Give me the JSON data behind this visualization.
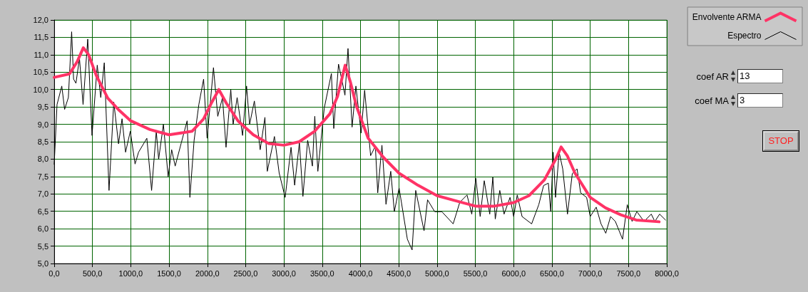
{
  "chart_data": {
    "type": "line",
    "xlim": [
      0,
      8000
    ],
    "ylim": [
      5,
      12
    ],
    "xticks": [
      {
        "value": 0,
        "label": "0,0"
      },
      {
        "value": 500,
        "label": "500,0"
      },
      {
        "value": 1000,
        "label": "1000,0"
      },
      {
        "value": 1500,
        "label": "1500,0"
      },
      {
        "value": 2000,
        "label": "2000,0"
      },
      {
        "value": 2500,
        "label": "2500,0"
      },
      {
        "value": 3000,
        "label": "3000,0"
      },
      {
        "value": 3500,
        "label": "3500,0"
      },
      {
        "value": 4000,
        "label": "4000,0"
      },
      {
        "value": 4500,
        "label": "4500,0"
      },
      {
        "value": 5000,
        "label": "5000,0"
      },
      {
        "value": 5500,
        "label": "5500,0"
      },
      {
        "value": 6000,
        "label": "6000,0"
      },
      {
        "value": 6500,
        "label": "6500,0"
      },
      {
        "value": 7000,
        "label": "7000,0"
      },
      {
        "value": 7500,
        "label": "7500,0"
      },
      {
        "value": 8000,
        "label": "8000,0"
      }
    ],
    "yticks": [
      {
        "value": 5,
        "label": "5,0"
      },
      {
        "value": 5.5,
        "label": "5,5"
      },
      {
        "value": 6,
        "label": "6,0"
      },
      {
        "value": 6.5,
        "label": "6,5"
      },
      {
        "value": 7,
        "label": "7,0"
      },
      {
        "value": 7.5,
        "label": "7,5"
      },
      {
        "value": 8,
        "label": "8,0"
      },
      {
        "value": 8.5,
        "label": "8,5"
      },
      {
        "value": 9,
        "label": "9,0"
      },
      {
        "value": 9.5,
        "label": "9,5"
      },
      {
        "value": 10,
        "label": "10,0"
      },
      {
        "value": 10.5,
        "label": "10,5"
      },
      {
        "value": 11,
        "label": "11,0"
      },
      {
        "value": 11.5,
        "label": "11,5"
      },
      {
        "value": 12,
        "label": "12,0"
      }
    ],
    "grid": true,
    "legend": "top right",
    "marker": "none",
    "line_style": "solid",
    "annotations": [
      "coef AR",
      "13",
      "coef MA",
      "3",
      "STOP"
    ],
    "series": [
      {
        "name": "Envolvente ARMA",
        "color": "#ff3366",
        "x": [
          0,
          200,
          300,
          380,
          450,
          550,
          700,
          850,
          1000,
          1250,
          1500,
          1800,
          1950,
          2050,
          2150,
          2250,
          2400,
          2600,
          2800,
          3000,
          3200,
          3400,
          3600,
          3700,
          3800,
          3870,
          3950,
          4100,
          4300,
          4500,
          4750,
          5000,
          5250,
          5500,
          5750,
          6000,
          6200,
          6400,
          6550,
          6620,
          6700,
          6800,
          7000,
          7200,
          7400,
          7600,
          7900
        ],
        "values": [
          10.35,
          10.45,
          10.8,
          11.2,
          11.0,
          10.4,
          9.75,
          9.4,
          9.1,
          8.85,
          8.7,
          8.8,
          9.15,
          9.6,
          10.0,
          9.6,
          9.1,
          8.7,
          8.45,
          8.4,
          8.5,
          8.8,
          9.3,
          9.8,
          10.7,
          10.2,
          9.5,
          8.6,
          8.05,
          7.6,
          7.25,
          6.95,
          6.8,
          6.65,
          6.65,
          6.75,
          6.95,
          7.4,
          8.0,
          8.35,
          8.1,
          7.6,
          6.9,
          6.6,
          6.4,
          6.25,
          6.2
        ]
      },
      {
        "name": "Espectro",
        "color": "#000000",
        "x": [
          0,
          37,
          99,
          136,
          185,
          228,
          253,
          284,
          330,
          377,
          438,
          494,
          562,
          608,
          654,
          716,
          778,
          840,
          886,
          932,
          994,
          1056,
          1102,
          1210,
          1272,
          1333,
          1364,
          1426,
          1488,
          1534,
          1580,
          1660,
          1736,
          1772,
          1827,
          1889,
          1951,
          1997,
          2080,
          2136,
          2198,
          2244,
          2306,
          2337,
          2389,
          2460,
          2512,
          2552,
          2614,
          2690,
          2752,
          2783,
          2876,
          2938,
          3016,
          3093,
          3140,
          3202,
          3248,
          3310,
          3372,
          3403,
          3443,
          3527,
          3620,
          3651,
          3713,
          3797,
          3837,
          3890,
          3940,
          4008,
          4054,
          4132,
          4194,
          4225,
          4280,
          4333,
          4395,
          4442,
          4504,
          4612,
          4674,
          4721,
          4830,
          4876,
          4969,
          5062,
          5140,
          5210,
          5297,
          5391,
          5453,
          5506,
          5563,
          5616,
          5688,
          5728,
          5760,
          5819,
          5875,
          5953,
          6000,
          6047,
          6110,
          6235,
          6328,
          6391,
          6453,
          6485,
          6516,
          6547,
          6594,
          6641,
          6703,
          6766,
          6828,
          6875,
          6953,
          7000,
          7078,
          7141,
          7203,
          7266,
          7328,
          7422,
          7484,
          7547,
          7609,
          7703,
          7797,
          7844,
          7906,
          7984
        ],
        "values": [
          7.85,
          9.57,
          10.1,
          9.43,
          9.77,
          11.66,
          10.3,
          10.18,
          10.9,
          9.57,
          11.45,
          8.68,
          10.7,
          9.77,
          10.77,
          7.1,
          9.64,
          8.44,
          9.16,
          8.2,
          8.8,
          7.86,
          8.2,
          8.6,
          7.1,
          8.8,
          8.0,
          9.0,
          7.5,
          8.27,
          7.8,
          8.47,
          9.1,
          6.9,
          8.54,
          9.57,
          10.3,
          8.6,
          10.63,
          9.23,
          9.77,
          8.34,
          10.0,
          9.0,
          9.77,
          8.68,
          10.1,
          9.0,
          9.67,
          8.27,
          9.2,
          7.65,
          8.65,
          7.6,
          6.9,
          8.34,
          7.25,
          8.47,
          6.93,
          8.54,
          7.8,
          9.23,
          7.65,
          9.47,
          10.46,
          8.88,
          10.73,
          9.84,
          11.18,
          8.92,
          10.1,
          8.75,
          9.98,
          8.1,
          8.37,
          7.03,
          8.4,
          6.7,
          7.65,
          6.49,
          7.17,
          5.7,
          5.39,
          7.1,
          5.94,
          6.83,
          6.49,
          6.49,
          null,
          6.14,
          6.76,
          6.97,
          6.42,
          7.45,
          6.35,
          7.38,
          6.42,
          7.48,
          6.28,
          7.1,
          6.42,
          6.9,
          6.35,
          6.97,
          6.35,
          6.14,
          6.69,
          7.24,
          7.31,
          6.49,
          8.2,
          6.9,
          8.2,
          7.72,
          6.42,
          7.58,
          7.72,
          7.03,
          6.9,
          6.35,
          6.62,
          6.14,
          5.87,
          6.35,
          6.21,
          5.7,
          6.69,
          6.21,
          6.49,
          6.21,
          6.42,
          6.21,
          6.42,
          6.25
        ]
      }
    ]
  }
}
